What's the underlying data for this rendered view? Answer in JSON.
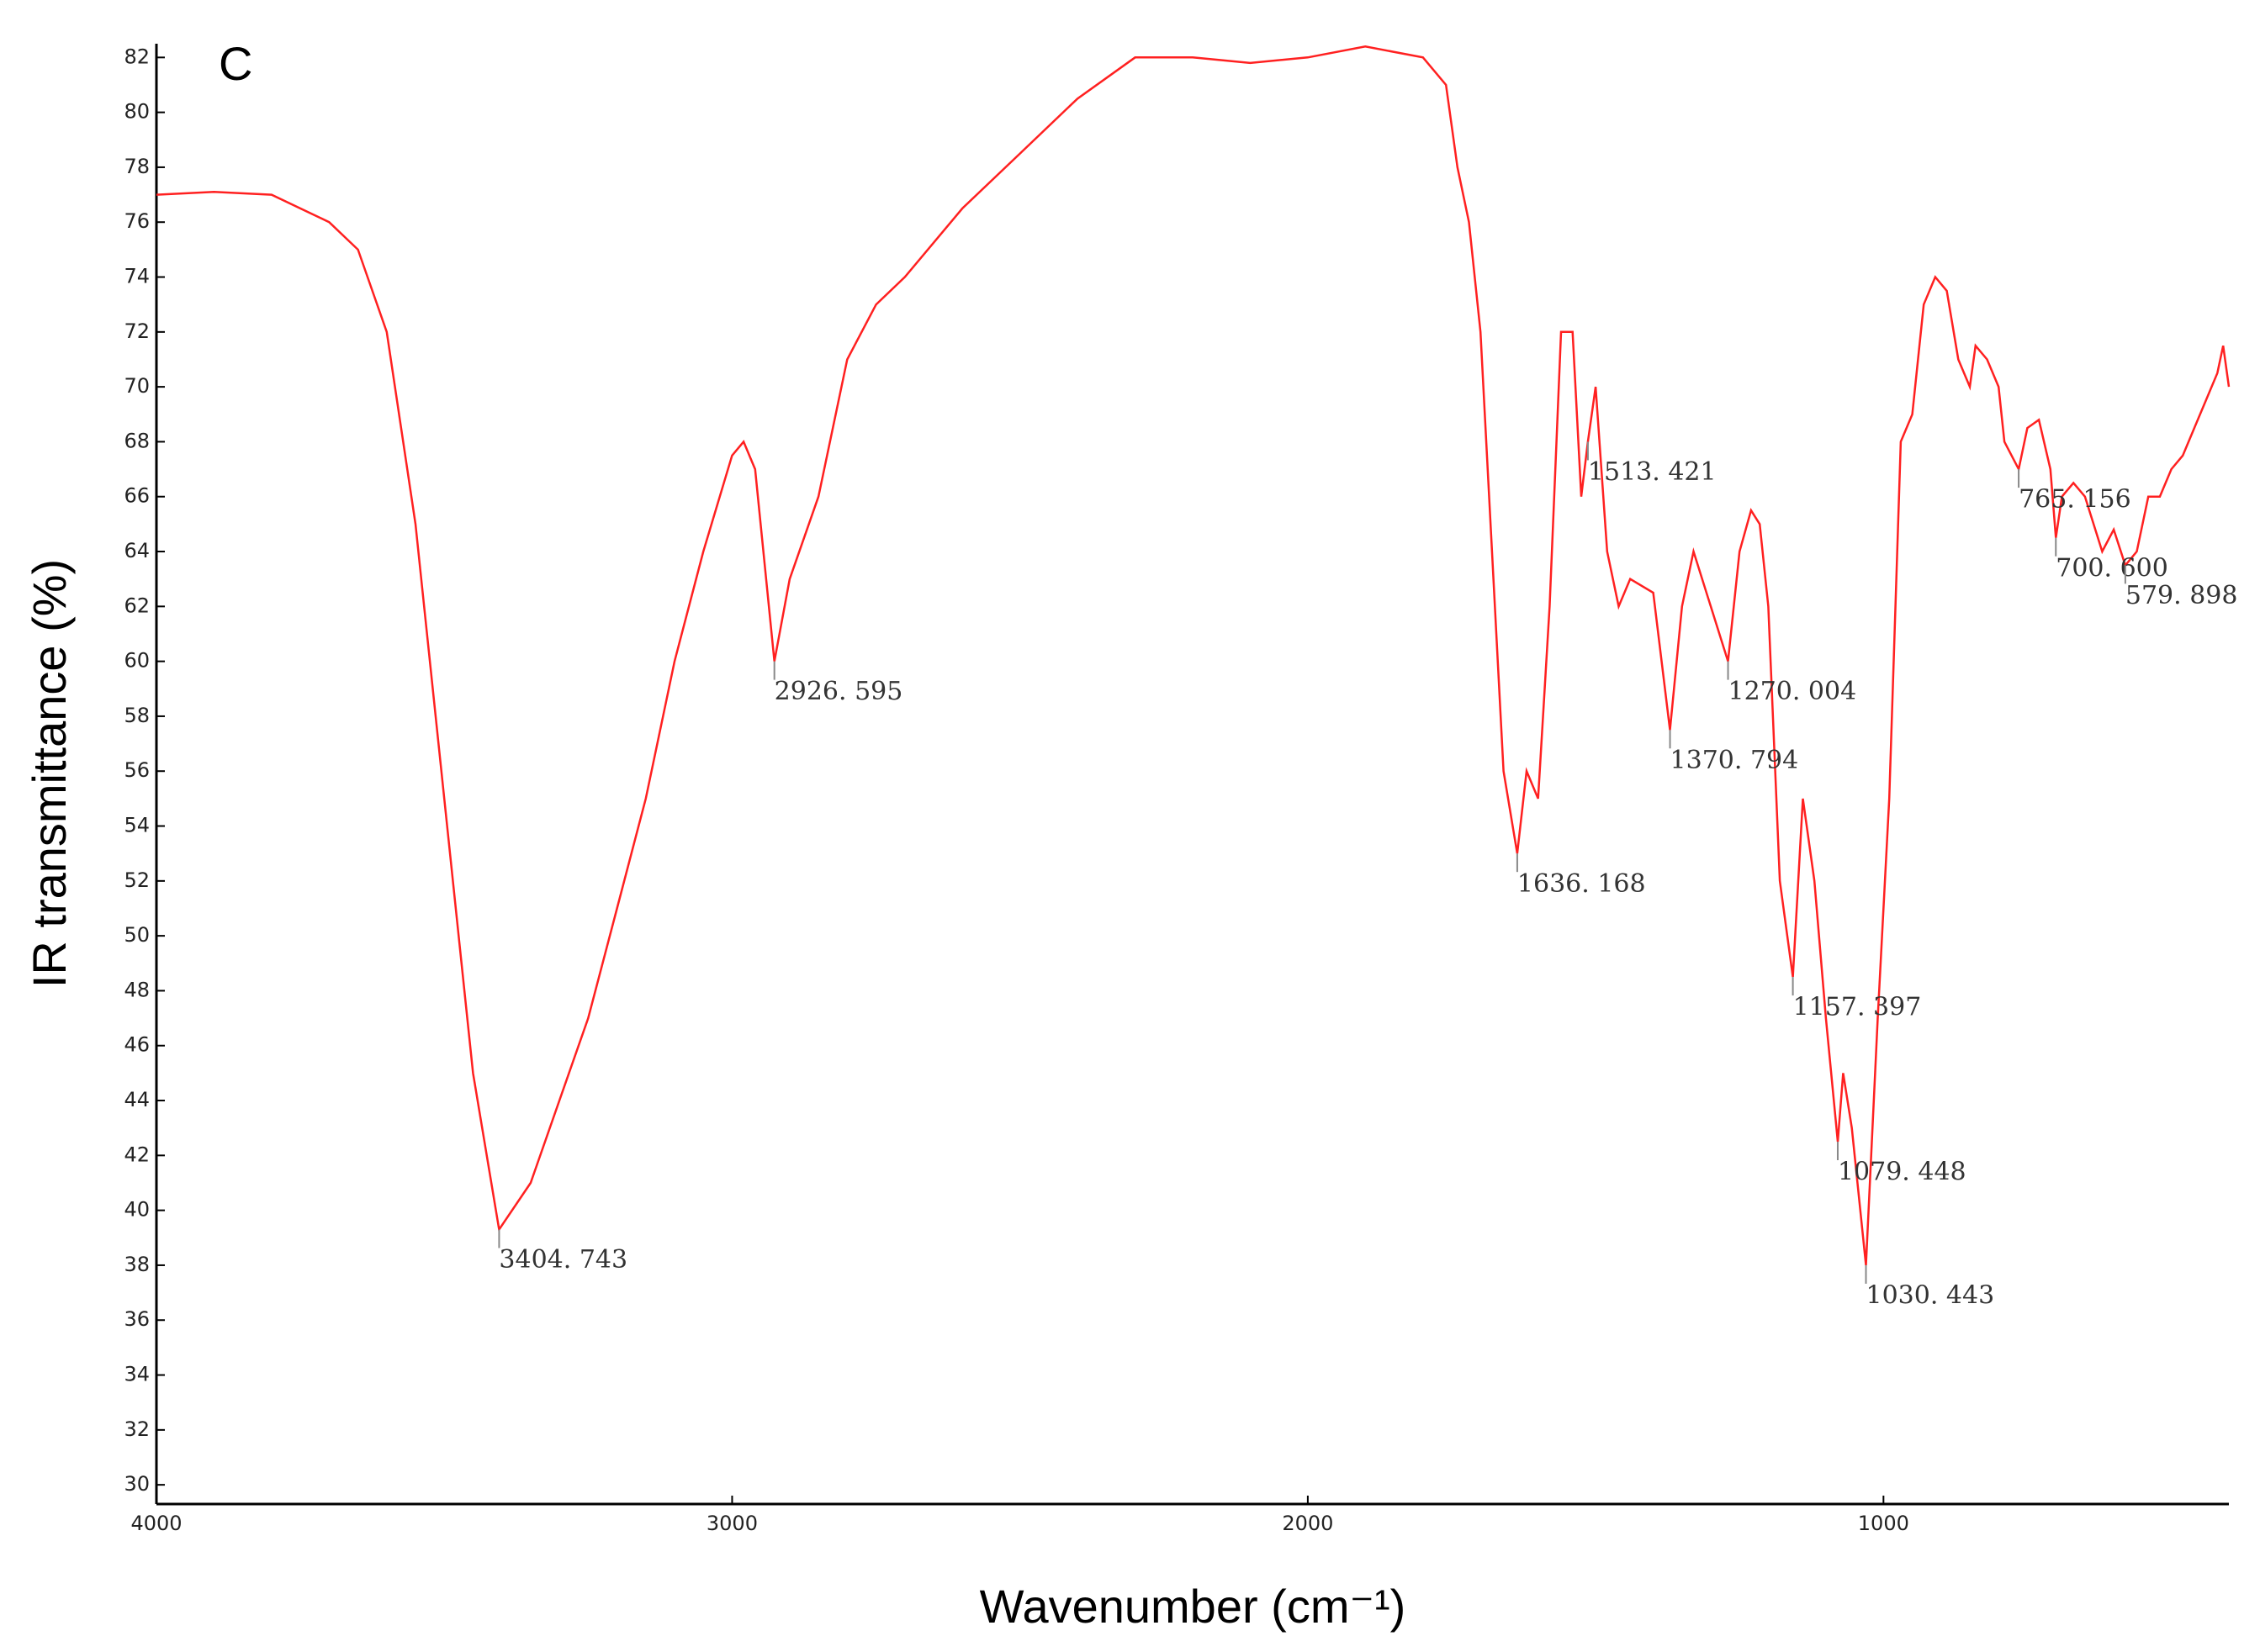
{
  "chart_data": {
    "type": "line",
    "panel_label": "C",
    "ylabel": "IR transmittance (%)",
    "xlabel": "Wavenumber (cm⁻¹)",
    "xlim": [
      4000,
      400
    ],
    "xticks": [
      4000,
      3000,
      2000,
      1000
    ],
    "ylim": [
      29.3,
      82.5
    ],
    "yticks": [
      30,
      32,
      34,
      36,
      38,
      40,
      42,
      44,
      46,
      48,
      50,
      52,
      54,
      56,
      58,
      60,
      62,
      64,
      66,
      68,
      70,
      72,
      74,
      76,
      78,
      80,
      82
    ],
    "series": [
      {
        "color": "#ff2020",
        "x": [
          4000,
          3900,
          3800,
          3700,
          3650,
          3600,
          3550,
          3500,
          3450,
          3404.743,
          3350,
          3300,
          3250,
          3200,
          3150,
          3100,
          3050,
          3000,
          2980,
          2960,
          2926.595,
          2900,
          2850,
          2800,
          2750,
          2700,
          2600,
          2500,
          2400,
          2300,
          2200,
          2100,
          2000,
          1900,
          1800,
          1760,
          1740,
          1720,
          1700,
          1680,
          1660,
          1636.168,
          1620,
          1600,
          1580,
          1560,
          1540,
          1525,
          1513.421,
          1500,
          1480,
          1460,
          1440,
          1400,
          1370.794,
          1350,
          1330,
          1300,
          1270.004,
          1250,
          1230,
          1215,
          1200,
          1180,
          1157.397,
          1140,
          1120,
          1100,
          1079.448,
          1070,
          1055,
          1030.443,
          1010,
          990,
          970,
          950,
          930,
          910,
          890,
          870,
          850,
          840,
          820,
          800,
          790,
          765.156,
          750,
          730,
          710,
          700.6,
          690,
          670,
          650,
          620,
          600,
          579.898,
          560,
          540,
          520,
          500,
          480,
          460,
          440,
          420,
          410,
          400
        ],
        "values": [
          77,
          77.1,
          77,
          76,
          75,
          72,
          65,
          55,
          45,
          39.3,
          41,
          44,
          47,
          51,
          55,
          60,
          64,
          67.5,
          68,
          67,
          60,
          63,
          66,
          71,
          73,
          74,
          76.5,
          78.5,
          80.5,
          82,
          82,
          81.8,
          82,
          82.4,
          82,
          81,
          78,
          76,
          72,
          64,
          56,
          53,
          56,
          55,
          62,
          72,
          72,
          66,
          68,
          70,
          64,
          62,
          63,
          62.5,
          57.5,
          62,
          64,
          62,
          60,
          64,
          65.5,
          65,
          62,
          52,
          48.5,
          55,
          52,
          47,
          42.5,
          45,
          43,
          38,
          47,
          55,
          68,
          69,
          73,
          74,
          73.5,
          71,
          70,
          71.5,
          71,
          70,
          68,
          67,
          68.5,
          68.8,
          67,
          64.5,
          66,
          66.5,
          66,
          64,
          64.8,
          63.5,
          64,
          66,
          66,
          67,
          67.5,
          68.5,
          69.5,
          70.5,
          71.5,
          70
        ]
      }
    ],
    "peaks": [
      {
        "x": 3404.743,
        "label": "3404. 743"
      },
      {
        "x": 2926.595,
        "label": "2926. 595"
      },
      {
        "x": 1636.168,
        "label": "1636. 168"
      },
      {
        "x": 1513.421,
        "label": "1513. 421"
      },
      {
        "x": 1370.794,
        "label": "1370. 794"
      },
      {
        "x": 1270.004,
        "label": "1270. 004"
      },
      {
        "x": 1157.397,
        "label": "1157. 397"
      },
      {
        "x": 1079.448,
        "label": "1079. 448"
      },
      {
        "x": 1030.443,
        "label": "1030. 443"
      },
      {
        "x": 765.156,
        "label": "765. 156"
      },
      {
        "x": 700.6,
        "label": "700. 600"
      },
      {
        "x": 579.898,
        "label": "579. 898"
      }
    ]
  }
}
